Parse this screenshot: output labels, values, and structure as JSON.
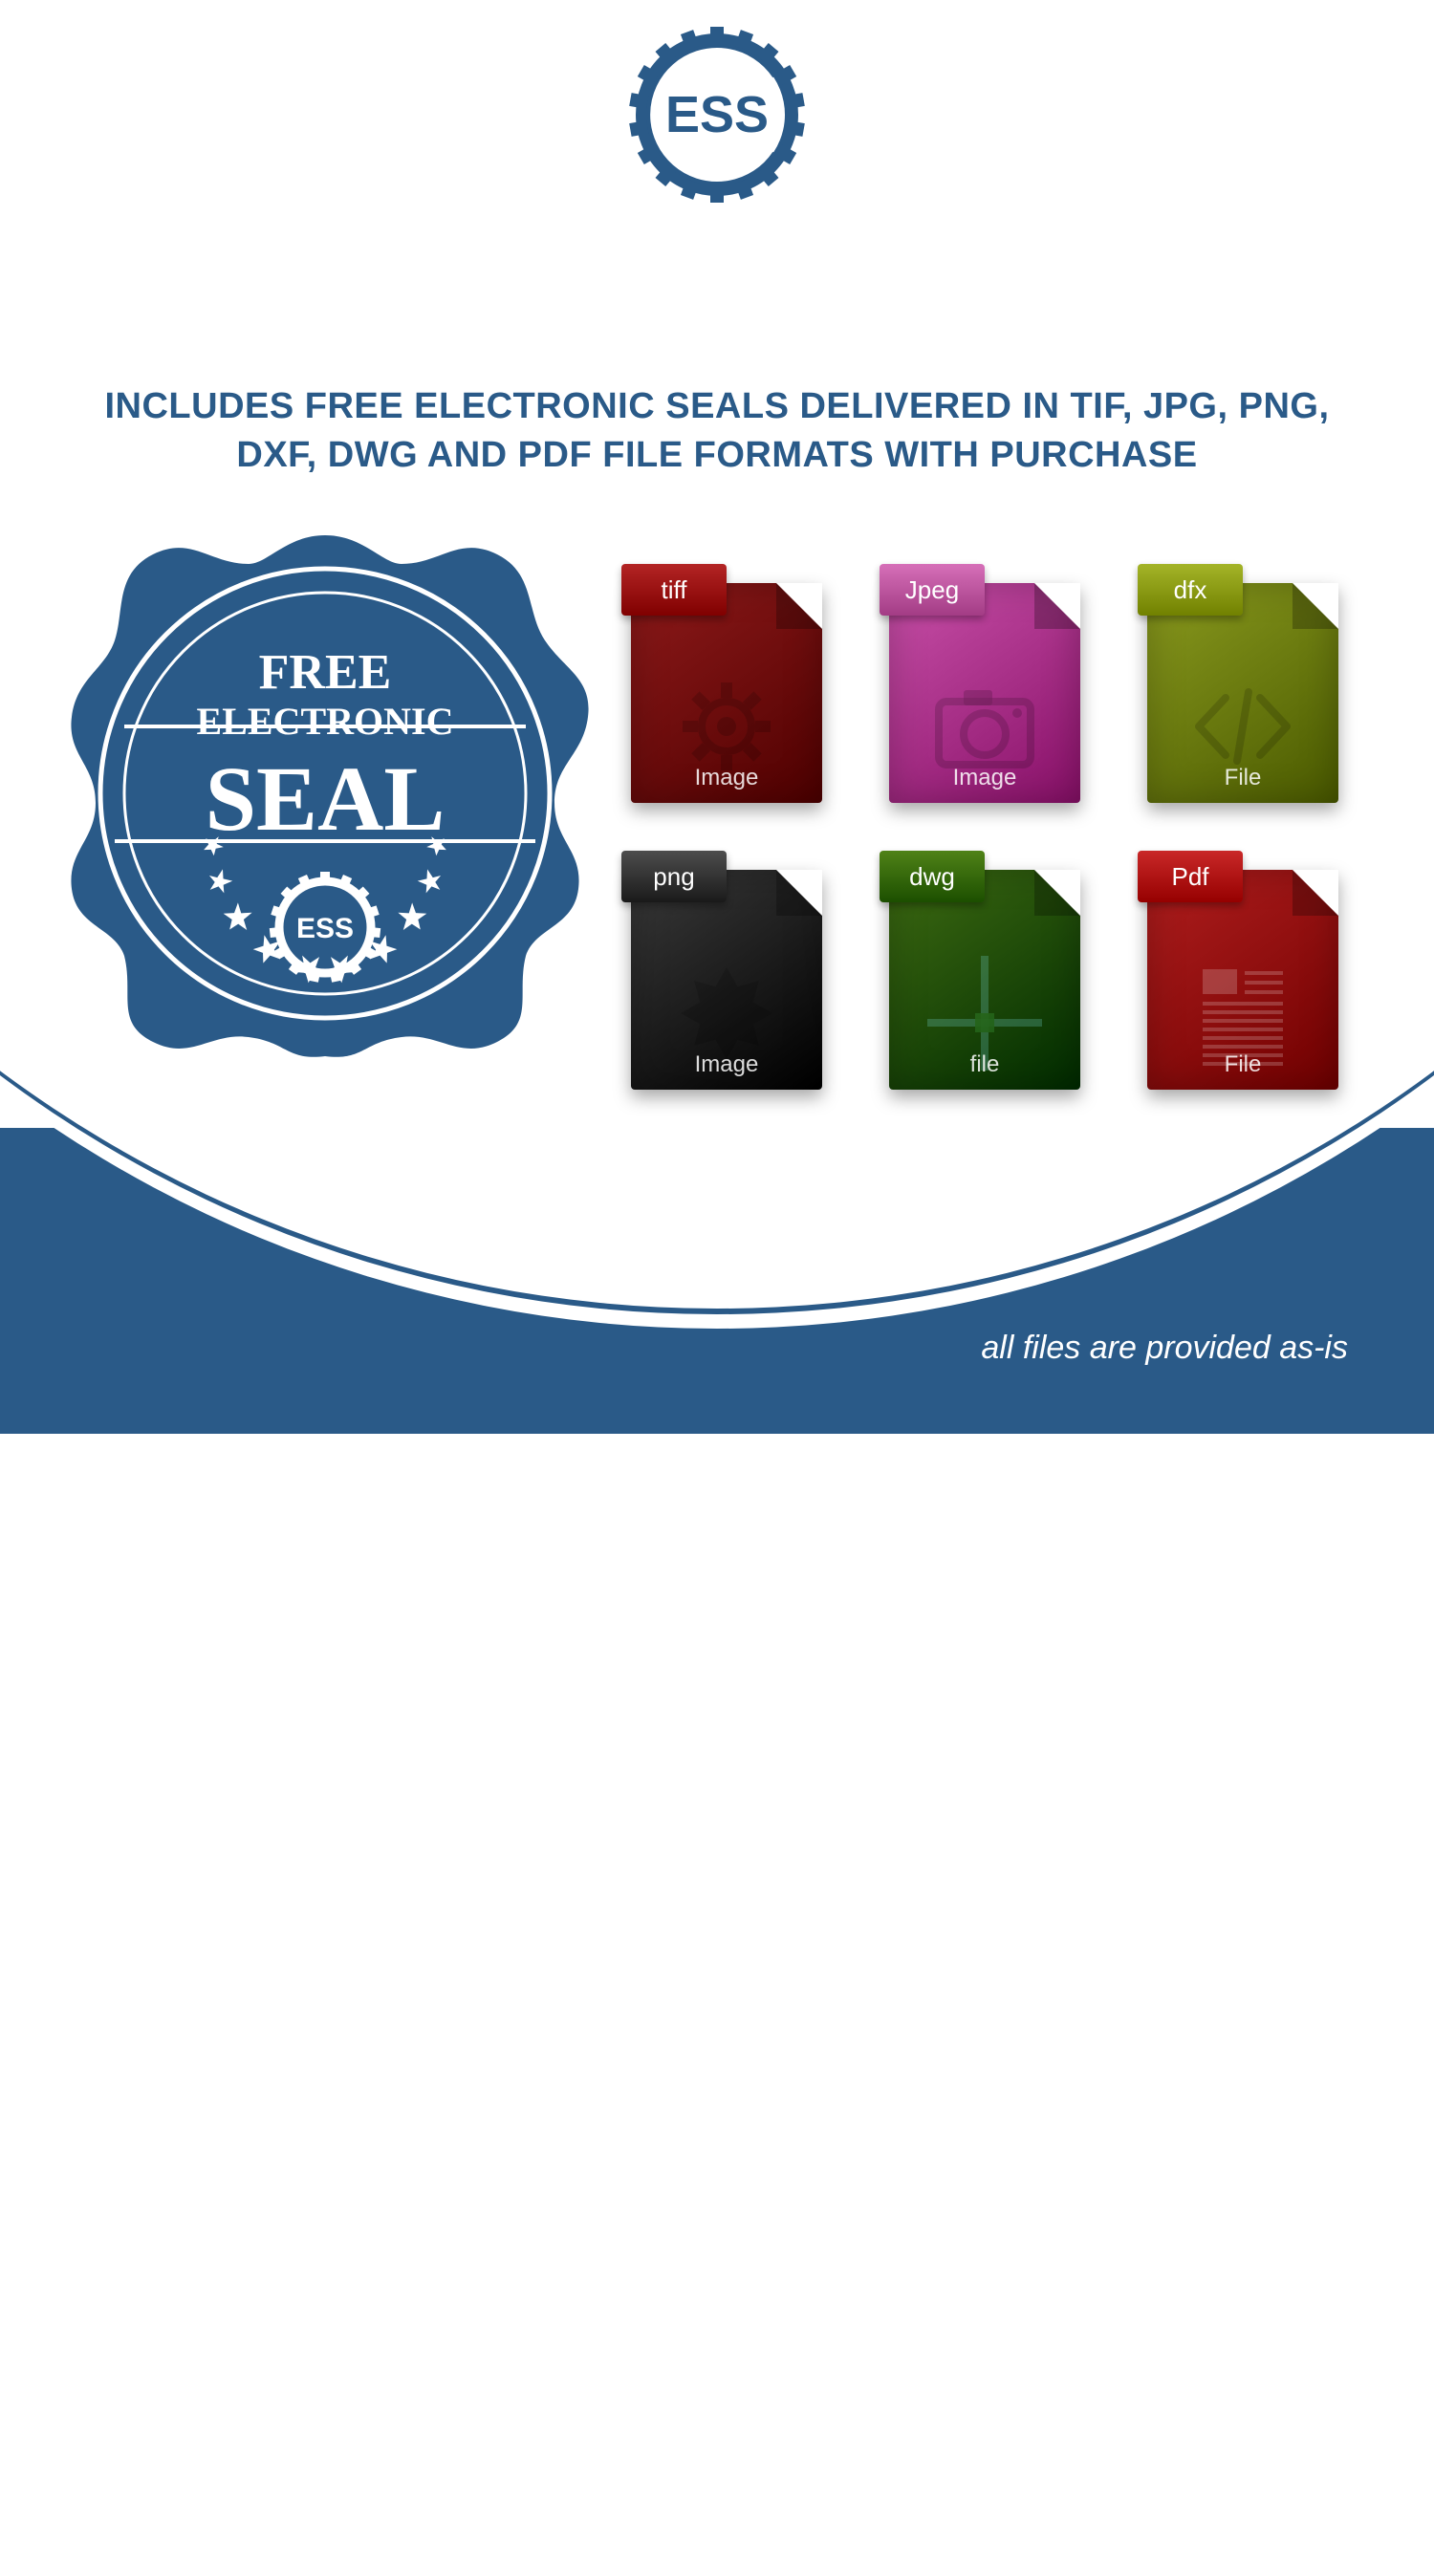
{
  "colors": {
    "brand_blue": "#2a5a88",
    "white": "#ffffff"
  },
  "logo": {
    "text": "ESS",
    "shield_fill": "#ffffff",
    "gear_stroke": "#2a5a88",
    "text_color": "#2a5a88"
  },
  "headline": {
    "text": "INCLUDES FREE ELECTRONIC SEALS DELIVERED IN TIF, JPG, PNG, DXF, DWG AND PDF FILE FORMATS WITH PURCHASE",
    "color": "#2a5a88",
    "fontsize": 38,
    "weight": "bold"
  },
  "seal": {
    "line1": "FREE",
    "line2": "ELECTRONIC",
    "line3": "SEAL",
    "inner_logo": "ESS",
    "fill": "#2a5a88",
    "text_color": "#ffffff",
    "star_count": 10
  },
  "file_icons": [
    {
      "tab_label": "tiff",
      "footer": "Image",
      "body_color": "#8e1a1a",
      "tab_color": "#b32424",
      "glyph": "gear"
    },
    {
      "tab_label": "Jpeg",
      "footer": "Image",
      "body_color": "#c850a8",
      "tab_color": "#d66fb8",
      "glyph": "camera"
    },
    {
      "tab_label": "dfx",
      "footer": "File",
      "body_color": "#8a9a1e",
      "tab_color": "#a4b428",
      "glyph": "code"
    },
    {
      "tab_label": "png",
      "footer": "Image",
      "body_color": "#3a3a3a",
      "tab_color": "#4d4d4d",
      "glyph": "starburst"
    },
    {
      "tab_label": "dwg",
      "footer": "file",
      "body_color": "#3e6b12",
      "tab_color": "#4f8217",
      "glyph": "crosshair"
    },
    {
      "tab_label": "Pdf",
      "footer": "File",
      "body_color": "#b01e1e",
      "tab_color": "#c92828",
      "glyph": "doc-lines"
    }
  ],
  "disclaimer": {
    "text": "all files are provided as-is",
    "color": "#ffffff",
    "fontsize": 34,
    "style": "italic"
  }
}
